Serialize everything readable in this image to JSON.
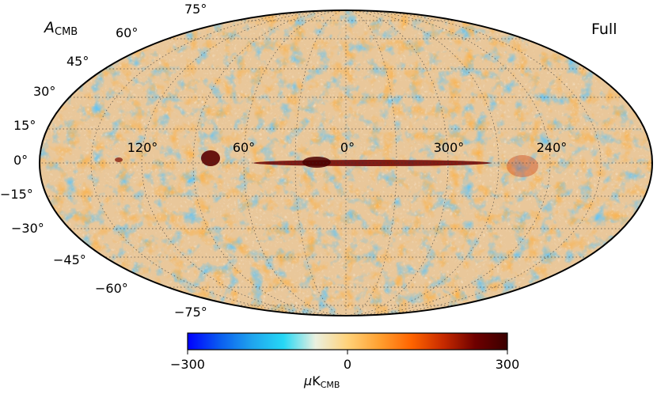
{
  "map": {
    "title_symbol": "A",
    "title_sub": "CMB",
    "mask_label": "Full",
    "projection": "Mollweide",
    "lat_labels": [
      "75°",
      "60°",
      "45°",
      "30°",
      "15°",
      "0°",
      "−15°",
      "−30°",
      "−45°",
      "−60°",
      "−75°"
    ],
    "lon_labels": [
      "120°",
      "60°",
      "0°",
      "300°",
      "240°"
    ]
  },
  "colorbar": {
    "min_label": "−300",
    "mid_label": "0",
    "max_label": "300",
    "unit_symbol": "μ",
    "unit_main": "K",
    "unit_sub": "CMB",
    "colors": [
      "#0000ff",
      "#0a5cf0",
      "#1fa3ee",
      "#26d8f5",
      "#eaf0e0",
      "#ffd27a",
      "#ffa030",
      "#ff6400",
      "#c72a00",
      "#6e0000",
      "#3a0000"
    ]
  }
}
